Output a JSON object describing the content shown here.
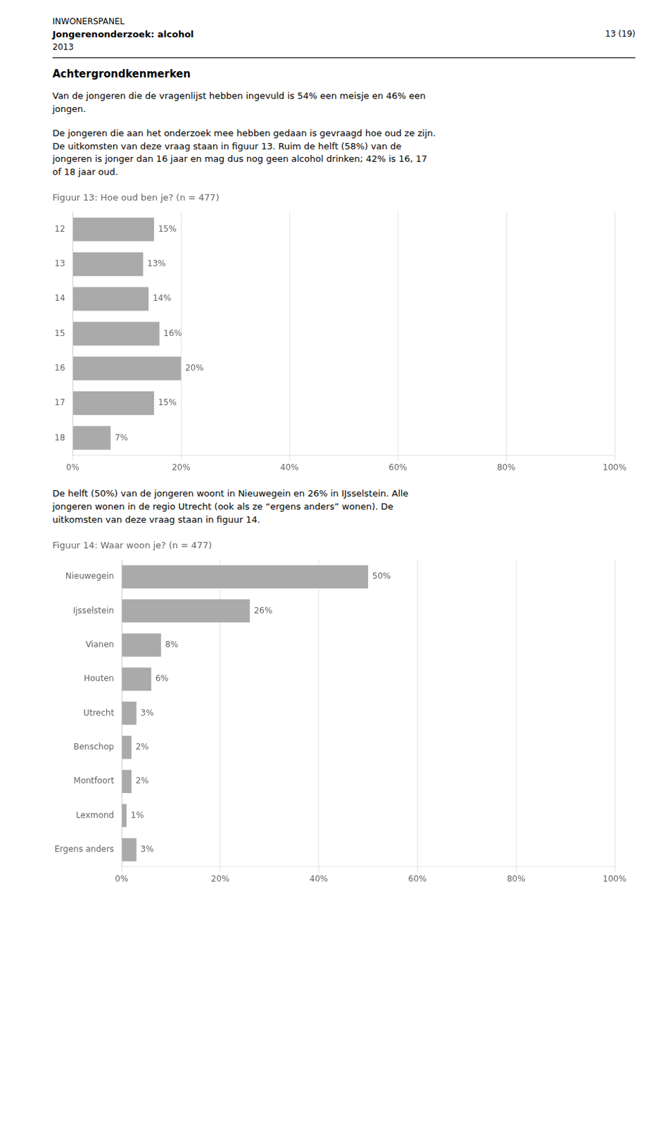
{
  "header": {
    "left": [
      "INWONERSPANEL",
      "Jongerenonderzoek: alcohol",
      "2013"
    ],
    "right": "13 (19)"
  },
  "section_title": "Achtergrondkenmerken",
  "paragraphs": [
    [
      "Van de jongeren die de vragenlijst hebben ingevuld is 54% een meisje en 46% een\njongen.",
      "De jongeren die aan het onderzoek mee hebben gedaan is gevraagd hoe oud ze zijn.\nDe uitkomsten van deze vraag staan in figuur 13. Ruim de helft (58%) van de\njongeren is jonger dan 16 jaar en mag dus nog geen alcohol drinken; 42% is 16, 17\nof 18 jaar oud."
    ],
    [
      "De helft (50%) van de jongeren woont in Nieuwegein en 26% in IJsselstein. Alle\njongeren wonen in de regio Utrecht (ook als ze “ergens anders” wonen). De\nuitkomsten van deze vraag staan in figuur 14."
    ]
  ],
  "chart_data": [
    {
      "type": "bar",
      "orientation": "horizontal",
      "title": "Figuur 13: Hoe oud ben je? (n = 477)",
      "categories": [
        "12",
        "13",
        "14",
        "15",
        "16",
        "17",
        "18"
      ],
      "values": [
        15,
        13,
        14,
        16,
        20,
        15,
        7
      ],
      "value_labels": [
        "15%",
        "13%",
        "14%",
        "16%",
        "20%",
        "15%",
        "7%"
      ],
      "data_labels": true,
      "color": "#aaaaaa",
      "xlim": [
        0,
        100
      ],
      "xticks": [
        {
          "value": 0,
          "label": "0%"
        },
        {
          "value": 20,
          "label": "20%"
        },
        {
          "value": 40,
          "label": "40%"
        },
        {
          "value": 60,
          "label": "60%"
        },
        {
          "value": 80,
          "label": "80%"
        },
        {
          "value": 100,
          "label": "100%"
        }
      ],
      "grid": true
    },
    {
      "type": "bar",
      "orientation": "horizontal",
      "title": "Figuur 14: Waar woon je? (n = 477)",
      "categories": [
        "Nieuwegein",
        "Ijsselstein",
        "Vianen",
        "Houten",
        "Utrecht",
        "Benschop",
        "Montfoort",
        "Lexmond",
        "Ergens anders"
      ],
      "values": [
        50,
        26,
        8,
        6,
        3,
        2,
        2,
        1,
        3
      ],
      "value_labels": [
        "50%",
        "26%",
        "8%",
        "6%",
        "3%",
        "2%",
        "2%",
        "1%",
        "3%"
      ],
      "data_labels": true,
      "color": "#aaaaaa",
      "xlim": [
        0,
        100
      ],
      "xticks": [
        {
          "value": 0,
          "label": "0%"
        },
        {
          "value": 20,
          "label": "20%"
        },
        {
          "value": 40,
          "label": "40%"
        },
        {
          "value": 60,
          "label": "60%"
        },
        {
          "value": 80,
          "label": "80%"
        },
        {
          "value": 100,
          "label": "100%"
        }
      ],
      "grid": true
    }
  ]
}
